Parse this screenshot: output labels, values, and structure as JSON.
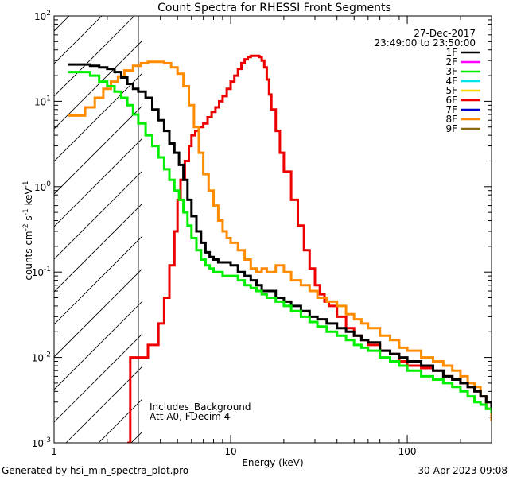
{
  "footer": {
    "generated_by": "Generated by hsi_min_spectra_plot.pro",
    "timestamp": "30-Apr-2023 09:08"
  },
  "chart_data": {
    "type": "line",
    "title": "Count Spectra for RHESSI Front Segments",
    "xlabel": "Energy (keV)",
    "ylabel_parts": {
      "base": "counts cm",
      "exp1": "-2",
      "mid1": " s",
      "exp2": "-1",
      "mid2": " keV",
      "exp3": "-1"
    },
    "xscale": "log",
    "yscale": "log",
    "xlim": [
      1,
      300
    ],
    "ylim": [
      0.001,
      100
    ],
    "x_ticks": [
      {
        "value": 1,
        "label": "1"
      },
      {
        "value": 10,
        "label": "10"
      },
      {
        "value": 100,
        "label": "100"
      }
    ],
    "y_ticks": [
      {
        "value": 0.001,
        "base": "10",
        "exp": "-3"
      },
      {
        "value": 0.01,
        "base": "10",
        "exp": "-2"
      },
      {
        "value": 0.1,
        "base": "10",
        "exp": "-1"
      },
      {
        "value": 1,
        "base": "10",
        "exp": "0"
      },
      {
        "value": 10,
        "base": "10",
        "exp": "1"
      },
      {
        "value": 100,
        "base": "10",
        "exp": "2"
      }
    ],
    "date": "27-Dec-2017",
    "time_range": "23:49:00 to 23:50:00",
    "annotations": [
      "Includes_Background",
      "Att A0, FDecim 4"
    ],
    "threshold_energy": 3,
    "legend": [
      {
        "label": "1F",
        "color": "#000000"
      },
      {
        "label": "2F",
        "color": "#ff00ff"
      },
      {
        "label": "3F",
        "color": "#00ee00"
      },
      {
        "label": "4F",
        "color": "#00e5ee"
      },
      {
        "label": "5F",
        "color": "#ffd700"
      },
      {
        "label": "6F",
        "color": "#ee0000"
      },
      {
        "label": "7F",
        "color": "#0000cd"
      },
      {
        "label": "8F",
        "color": "#ff8c00"
      },
      {
        "label": "9F",
        "color": "#8b6914"
      }
    ],
    "series": [
      {
        "name": "6F",
        "color": "#ee0000",
        "x": [
          2.6,
          2.7,
          3,
          3.4,
          3.9,
          4.2,
          4.5,
          4.8,
          5,
          5.2,
          5.5,
          5.8,
          6,
          6.3,
          6.6,
          7,
          7.4,
          7.8,
          8.2,
          8.6,
          9,
          9.5,
          10,
          10.5,
          11,
          11.5,
          12,
          12.5,
          13,
          13.5,
          14,
          14.5,
          15,
          15.5,
          16,
          16.5,
          17,
          18,
          19,
          20,
          22,
          24,
          26,
          28,
          30,
          32,
          34,
          36,
          40,
          45,
          50,
          55,
          60,
          70,
          80,
          90,
          100,
          120,
          140,
          160,
          180,
          200,
          220,
          240,
          260,
          280,
          300
        ],
        "y": [
          0.001,
          0.01,
          0.01,
          0.014,
          0.025,
          0.05,
          0.12,
          0.3,
          0.7,
          1.2,
          2,
          3,
          4,
          4.5,
          5,
          5.5,
          6.5,
          7.5,
          8.5,
          10,
          11.5,
          14,
          17,
          20,
          24,
          28,
          31,
          33,
          34,
          34,
          34,
          33,
          30,
          25,
          18,
          12,
          8,
          4.5,
          2.5,
          1.5,
          0.7,
          0.35,
          0.18,
          0.11,
          0.07,
          0.055,
          0.045,
          0.04,
          0.03,
          0.022,
          0.018,
          0.016,
          0.014,
          0.012,
          0.011,
          0.009,
          0.008,
          0.0075,
          0.007,
          0.006,
          0.0055,
          0.005,
          0.0045,
          0.004,
          0.0035,
          0.003,
          0.0025
        ]
      },
      {
        "name": "8F",
        "color": "#ff8c00",
        "x": [
          1.2,
          1.35,
          1.5,
          1.7,
          1.9,
          2.1,
          2.3,
          2.5,
          2.8,
          3.1,
          3.4,
          3.8,
          4.2,
          4.6,
          5,
          5.4,
          5.8,
          6.2,
          6.6,
          7,
          7.5,
          8,
          8.5,
          9,
          9.5,
          10,
          11,
          12,
          13,
          14,
          15,
          16,
          18,
          20,
          22,
          25,
          28,
          31,
          35,
          40,
          45,
          50,
          55,
          60,
          70,
          80,
          90,
          100,
          120,
          140,
          160,
          180,
          200,
          220,
          240,
          260,
          280,
          300
        ],
        "y": [
          6.8,
          6.8,
          8.5,
          11,
          14,
          17,
          19.5,
          23,
          26,
          28,
          29,
          29,
          28,
          25,
          21,
          15,
          9,
          5,
          2.5,
          1.4,
          0.9,
          0.6,
          0.4,
          0.3,
          0.25,
          0.22,
          0.18,
          0.14,
          0.11,
          0.1,
          0.11,
          0.1,
          0.12,
          0.1,
          0.08,
          0.07,
          0.06,
          0.05,
          0.045,
          0.04,
          0.032,
          0.028,
          0.025,
          0.022,
          0.018,
          0.016,
          0.013,
          0.012,
          0.01,
          0.009,
          0.008,
          0.007,
          0.006,
          0.005,
          0.0045,
          0.0035,
          0.0025,
          0.0018
        ]
      },
      {
        "name": "1F",
        "color": "#000000",
        "x": [
          1.2,
          1.4,
          1.6,
          1.8,
          2,
          2.2,
          2.4,
          2.6,
          2.8,
          3,
          3.3,
          3.6,
          3.9,
          4.2,
          4.5,
          4.8,
          5.1,
          5.4,
          5.7,
          6,
          6.4,
          6.8,
          7.2,
          7.6,
          8,
          8.5,
          9,
          10,
          11,
          12,
          13,
          14,
          15,
          16,
          18,
          20,
          22,
          25,
          28,
          31,
          35,
          40,
          45,
          50,
          55,
          60,
          70,
          80,
          90,
          100,
          120,
          140,
          160,
          180,
          200,
          220,
          240,
          260,
          280,
          300
        ],
        "y": [
          27,
          27,
          26,
          25,
          24,
          22,
          19,
          16,
          14,
          13,
          11,
          8,
          6,
          4.5,
          3.2,
          2.5,
          1.8,
          1.2,
          0.7,
          0.45,
          0.3,
          0.22,
          0.17,
          0.15,
          0.14,
          0.13,
          0.13,
          0.12,
          0.1,
          0.09,
          0.08,
          0.07,
          0.06,
          0.06,
          0.05,
          0.045,
          0.04,
          0.035,
          0.03,
          0.028,
          0.025,
          0.022,
          0.02,
          0.018,
          0.016,
          0.015,
          0.012,
          0.011,
          0.01,
          0.009,
          0.008,
          0.007,
          0.006,
          0.0055,
          0.005,
          0.0045,
          0.004,
          0.0035,
          0.003,
          0.0025
        ]
      },
      {
        "name": "3F",
        "color": "#00ee00",
        "x": [
          1.2,
          1.4,
          1.6,
          1.8,
          2,
          2.2,
          2.4,
          2.6,
          2.8,
          3,
          3.3,
          3.6,
          3.9,
          4.2,
          4.5,
          4.8,
          5.1,
          5.4,
          5.7,
          6,
          6.4,
          6.8,
          7.2,
          7.6,
          8,
          8.5,
          9,
          10,
          11,
          12,
          13,
          14,
          15,
          16,
          18,
          20,
          22,
          25,
          28,
          31,
          35,
          40,
          45,
          50,
          55,
          60,
          70,
          80,
          90,
          100,
          120,
          140,
          160,
          180,
          200,
          220,
          240,
          260,
          280,
          300
        ],
        "y": [
          22,
          22,
          20,
          17,
          15,
          13,
          11,
          9,
          7,
          5.5,
          4,
          3,
          2.2,
          1.6,
          1.2,
          0.9,
          0.7,
          0.5,
          0.35,
          0.25,
          0.18,
          0.14,
          0.12,
          0.11,
          0.1,
          0.1,
          0.09,
          0.09,
          0.08,
          0.07,
          0.065,
          0.06,
          0.055,
          0.05,
          0.045,
          0.04,
          0.035,
          0.03,
          0.026,
          0.023,
          0.02,
          0.018,
          0.016,
          0.014,
          0.013,
          0.012,
          0.01,
          0.009,
          0.008,
          0.007,
          0.006,
          0.0055,
          0.005,
          0.0045,
          0.004,
          0.0035,
          0.003,
          0.0028,
          0.0025,
          0.0022
        ]
      }
    ]
  }
}
